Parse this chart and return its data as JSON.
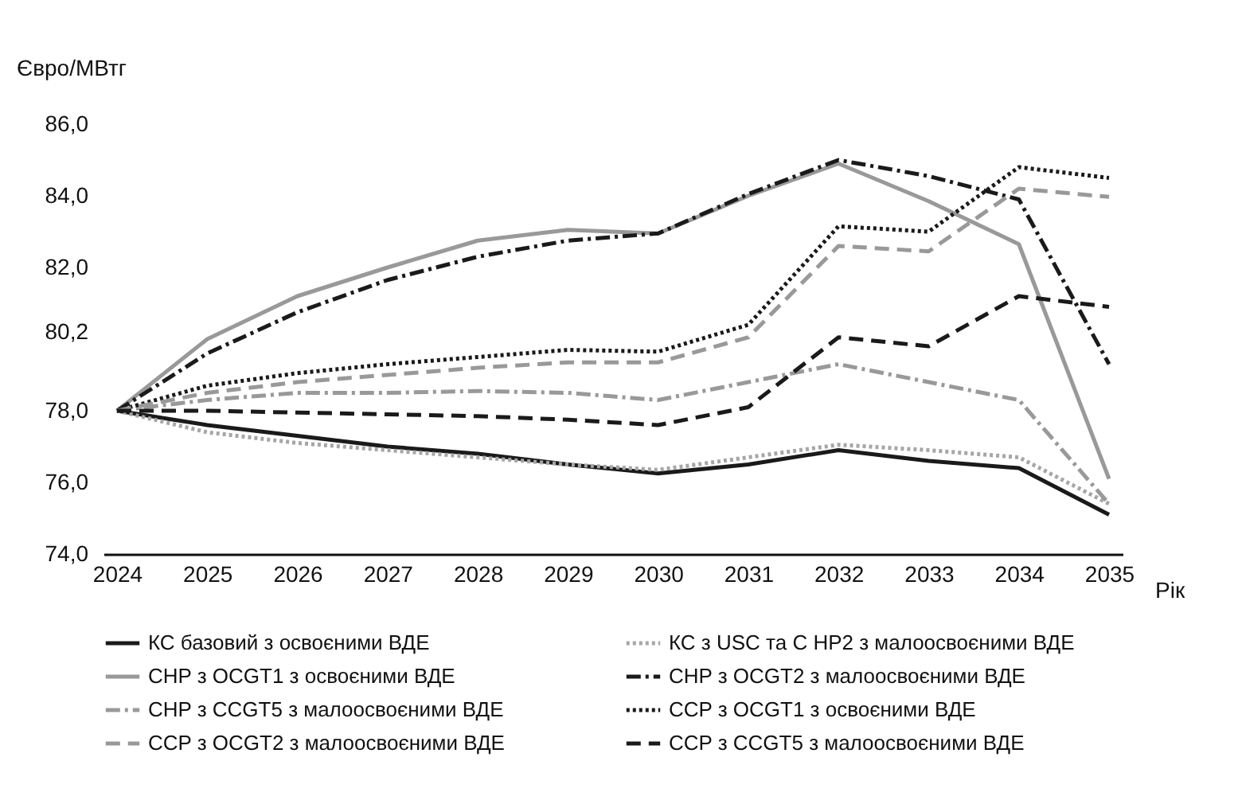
{
  "chart_data": {
    "type": "line",
    "xlabel": "Рік",
    "ylabel": "Євро/МВтг",
    "categories": [
      "2024",
      "2025",
      "2026",
      "2027",
      "2028",
      "2029",
      "2030",
      "2031",
      "2032",
      "2033",
      "2034",
      "2035"
    ],
    "ylim": [
      74,
      86
    ],
    "yticks": [
      {
        "value": 74,
        "label": "74,0"
      },
      {
        "value": 76,
        "label": "76,0"
      },
      {
        "value": 78,
        "label": "78,0"
      },
      {
        "value": 80.2,
        "label": "80,2"
      },
      {
        "value": 82,
        "label": "82,0"
      },
      {
        "value": 84,
        "label": "84,0"
      },
      {
        "value": 86,
        "label": "86,0"
      }
    ],
    "grid": false,
    "legend": "bottom",
    "marker": "none",
    "series": [
      {
        "name": "КС базовий з освоєними ВДЕ",
        "color": "#1a1a1a",
        "line_style": "solid",
        "values": [
          78.0,
          77.6,
          77.3,
          77.0,
          76.8,
          76.5,
          76.25,
          76.5,
          76.9,
          76.6,
          76.4,
          75.1
        ]
      },
      {
        "name": "КС з USC та С HP2 з малоосвоєними ВДЕ",
        "color": "#a6a6a6",
        "line_style": "dotted",
        "values": [
          78.0,
          77.4,
          77.1,
          76.9,
          76.7,
          76.5,
          76.35,
          76.7,
          77.05,
          76.9,
          76.7,
          75.4
        ]
      },
      {
        "name": "CHP з OCGT1 з освоєними ВДЕ",
        "color": "#999999",
        "line_style": "solid",
        "values": [
          78.0,
          80.0,
          81.2,
          82.0,
          82.75,
          83.05,
          82.95,
          84.0,
          84.9,
          83.85,
          82.65,
          76.1
        ]
      },
      {
        "name": "CHP з OCGT2 з малоосвоєними ВДЕ",
        "color": "#1a1a1a",
        "line_style": "dashdot",
        "values": [
          78.0,
          79.6,
          80.75,
          81.65,
          82.3,
          82.75,
          82.95,
          84.05,
          85.0,
          84.55,
          83.9,
          79.3
        ]
      },
      {
        "name": "CHP з CCGT5 з малоосвоєними ВДЕ",
        "color": "#999999",
        "line_style": "dashdot",
        "values": [
          78.0,
          78.3,
          78.5,
          78.5,
          78.55,
          78.5,
          78.3,
          78.8,
          79.3,
          78.8,
          78.3,
          75.4
        ]
      },
      {
        "name": "CCP з OCGT1 з освоєними ВДЕ",
        "color": "#1a1a1a",
        "line_style": "dotted",
        "values": [
          78.0,
          78.7,
          79.05,
          79.3,
          79.5,
          79.7,
          79.65,
          80.4,
          83.15,
          83.0,
          84.8,
          84.5
        ]
      },
      {
        "name": "CCP з OCGT2 з малоосвоєними ВДЕ",
        "color": "#999999",
        "line_style": "dashed",
        "values": [
          78.0,
          78.5,
          78.8,
          79.0,
          79.2,
          79.35,
          79.35,
          80.05,
          82.6,
          82.45,
          84.2,
          83.97
        ]
      },
      {
        "name": "CCP з CCGT5 з малоосвоєними ВДЕ",
        "color": "#1a1a1a",
        "line_style": "dashed",
        "values": [
          78.0,
          78.0,
          77.95,
          77.9,
          77.85,
          77.75,
          77.6,
          78.1,
          80.05,
          79.8,
          81.2,
          80.9
        ]
      }
    ]
  }
}
